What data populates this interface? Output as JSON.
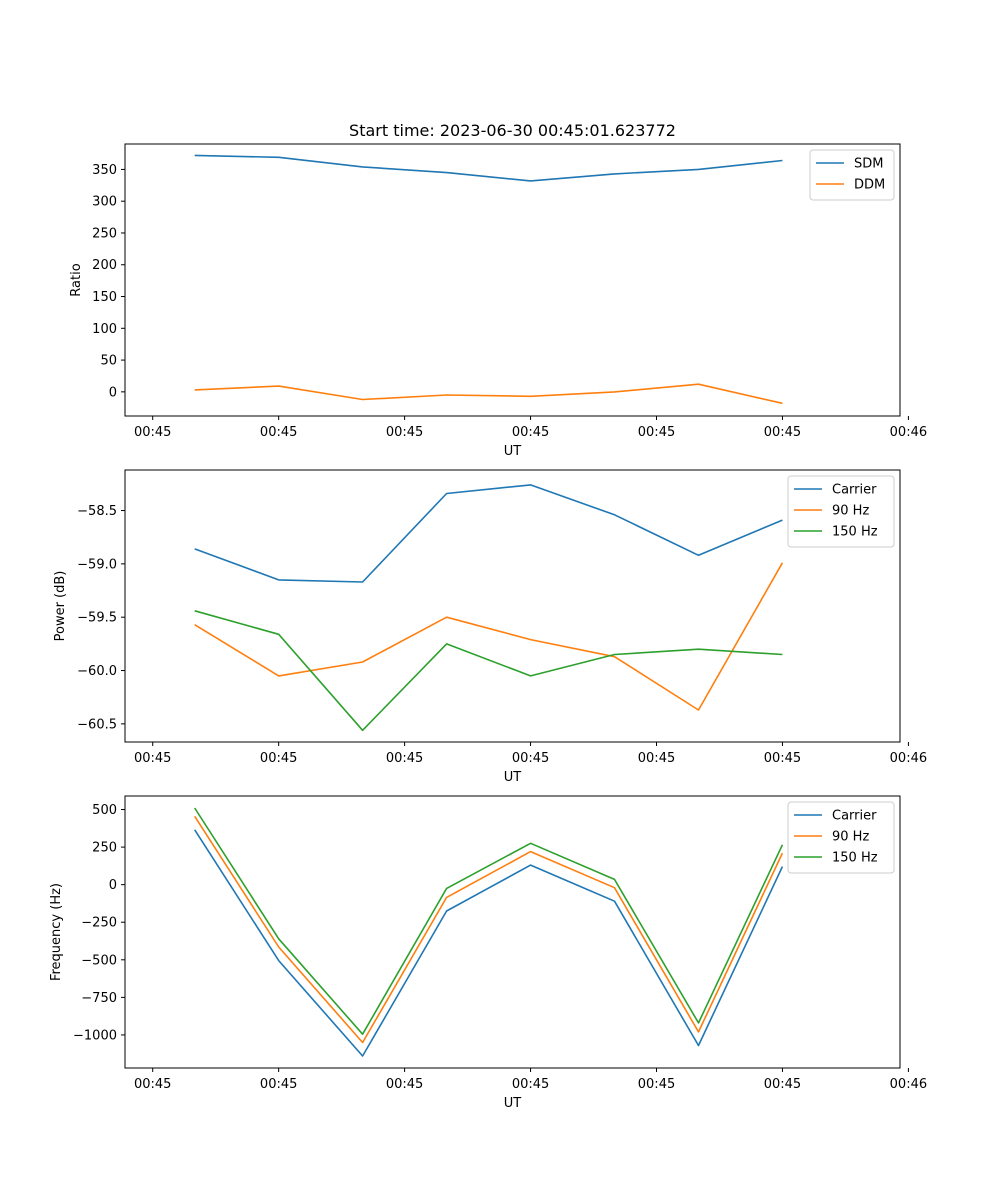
{
  "chart_data": [
    {
      "type": "line",
      "title": "Start time: 2023-06-30 00:45:01.623772",
      "xlabel": "UT",
      "ylabel": "Ratio",
      "x": [
        1,
        2,
        3,
        4,
        5,
        6,
        7,
        8
      ],
      "xlim": [
        0.17,
        9.4
      ],
      "ylim": [
        -38,
        390
      ],
      "x_tick_positions": [
        0.5,
        2,
        3.5,
        5,
        6.5,
        8,
        9.5
      ],
      "x_tick_labels": [
        "00:45",
        "00:45",
        "00:45",
        "00:45",
        "00:45",
        "00:45",
        "00:46"
      ],
      "y_ticks": [
        0,
        50,
        100,
        150,
        200,
        250,
        300,
        350
      ],
      "y_tick_labels": [
        "0",
        "50",
        "100",
        "150",
        "200",
        "250",
        "300",
        "350"
      ],
      "legend_position": "top-right",
      "series": [
        {
          "name": "SDM",
          "color": "#1f77b4",
          "values": [
            372,
            369,
            354,
            345,
            332,
            343,
            350,
            364
          ]
        },
        {
          "name": "DDM",
          "color": "#ff7f0e",
          "values": [
            3,
            9,
            -12,
            -5,
            -7,
            0,
            12,
            -18
          ]
        }
      ]
    },
    {
      "type": "line",
      "xlabel": "UT",
      "ylabel": "Power (dB)",
      "x": [
        1,
        2,
        3,
        4,
        5,
        6,
        7,
        8
      ],
      "xlim": [
        0.17,
        9.4
      ],
      "ylim": [
        -60.67,
        -58.12
      ],
      "x_tick_positions": [
        0.5,
        2,
        3.5,
        5,
        6.5,
        8,
        9.5
      ],
      "x_tick_labels": [
        "00:45",
        "00:45",
        "00:45",
        "00:45",
        "00:45",
        "00:45",
        "00:46"
      ],
      "y_ticks": [
        -60.5,
        -60.0,
        -59.5,
        -59.0,
        -58.5
      ],
      "y_tick_labels": [
        "−60.5",
        "−60.0",
        "−59.5",
        "−59.0",
        "−58.5"
      ],
      "legend_position": "top-right",
      "series": [
        {
          "name": "Carrier",
          "color": "#1f77b4",
          "values": [
            -58.86,
            -59.15,
            -59.17,
            -58.34,
            -58.26,
            -58.54,
            -58.92,
            -58.59
          ]
        },
        {
          "name": "90 Hz",
          "color": "#ff7f0e",
          "values": [
            -59.57,
            -60.05,
            -59.92,
            -59.5,
            -59.71,
            -59.87,
            -60.37,
            -58.99
          ]
        },
        {
          "name": "150 Hz",
          "color": "#2ca02c",
          "values": [
            -59.44,
            -59.66,
            -60.56,
            -59.75,
            -60.05,
            -59.85,
            -59.8,
            -59.85
          ]
        }
      ]
    },
    {
      "type": "line",
      "xlabel": "UT",
      "ylabel": "Frequency (Hz)",
      "x": [
        1,
        2,
        3,
        4,
        5,
        6,
        7,
        8
      ],
      "xlim": [
        0.17,
        9.4
      ],
      "ylim": [
        -1220,
        590
      ],
      "x_tick_positions": [
        0.5,
        2,
        3.5,
        5,
        6.5,
        8,
        9.5
      ],
      "x_tick_labels": [
        "00:45",
        "00:45",
        "00:45",
        "00:45",
        "00:45",
        "00:45",
        "00:46"
      ],
      "y_ticks": [
        -1000,
        -750,
        -500,
        -250,
        0,
        250,
        500
      ],
      "y_tick_labels": [
        "−1000",
        "−750",
        "−500",
        "−250",
        "0",
        "250",
        "500"
      ],
      "legend_position": "top-right",
      "series": [
        {
          "name": "Carrier",
          "color": "#1f77b4",
          "values": [
            365,
            -505,
            -1140,
            -175,
            130,
            -110,
            -1070,
            120
          ]
        },
        {
          "name": "90 Hz",
          "color": "#ff7f0e",
          "values": [
            455,
            -415,
            -1050,
            -85,
            220,
            -20,
            -980,
            210
          ]
        },
        {
          "name": "150 Hz",
          "color": "#2ca02c",
          "values": [
            510,
            -360,
            -995,
            -25,
            275,
            35,
            -920,
            265
          ]
        }
      ]
    }
  ]
}
